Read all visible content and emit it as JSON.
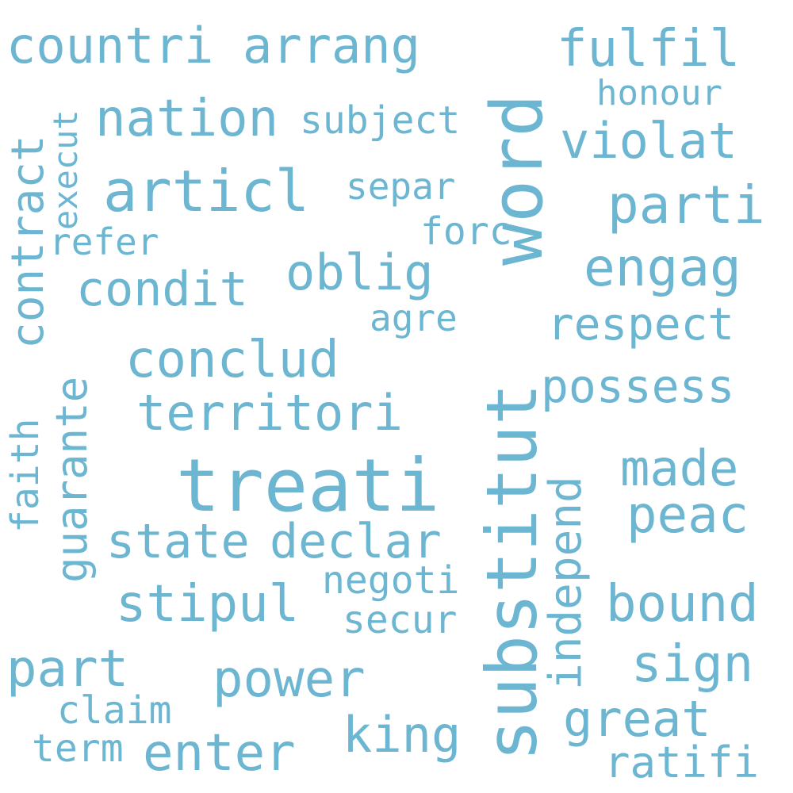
{
  "color": "#6cb6d2",
  "words": [
    {
      "text": "treati"
    },
    {
      "text": "substitut"
    },
    {
      "text": "word"
    },
    {
      "text": "articl"
    },
    {
      "text": "countri"
    },
    {
      "text": "arrang"
    },
    {
      "text": "fulfil"
    },
    {
      "text": "nation"
    },
    {
      "text": "subject"
    },
    {
      "text": "honour"
    },
    {
      "text": "violat"
    },
    {
      "text": "contract"
    },
    {
      "text": "execut"
    },
    {
      "text": "separ"
    },
    {
      "text": "parti"
    },
    {
      "text": "refer"
    },
    {
      "text": "forc"
    },
    {
      "text": "condit"
    },
    {
      "text": "oblig"
    },
    {
      "text": "engag"
    },
    {
      "text": "agre"
    },
    {
      "text": "respect"
    },
    {
      "text": "conclud"
    },
    {
      "text": "possess"
    },
    {
      "text": "guarante"
    },
    {
      "text": "territori"
    },
    {
      "text": "faith"
    },
    {
      "text": "made"
    },
    {
      "text": "peac"
    },
    {
      "text": "independ"
    },
    {
      "text": "state"
    },
    {
      "text": "declar"
    },
    {
      "text": "negoti"
    },
    {
      "text": "stipul"
    },
    {
      "text": "secur"
    },
    {
      "text": "bound"
    },
    {
      "text": "sign"
    },
    {
      "text": "part"
    },
    {
      "text": "power"
    },
    {
      "text": "claim"
    },
    {
      "text": "king"
    },
    {
      "text": "great"
    },
    {
      "text": "term"
    },
    {
      "text": "enter"
    },
    {
      "text": "ratifi"
    }
  ]
}
